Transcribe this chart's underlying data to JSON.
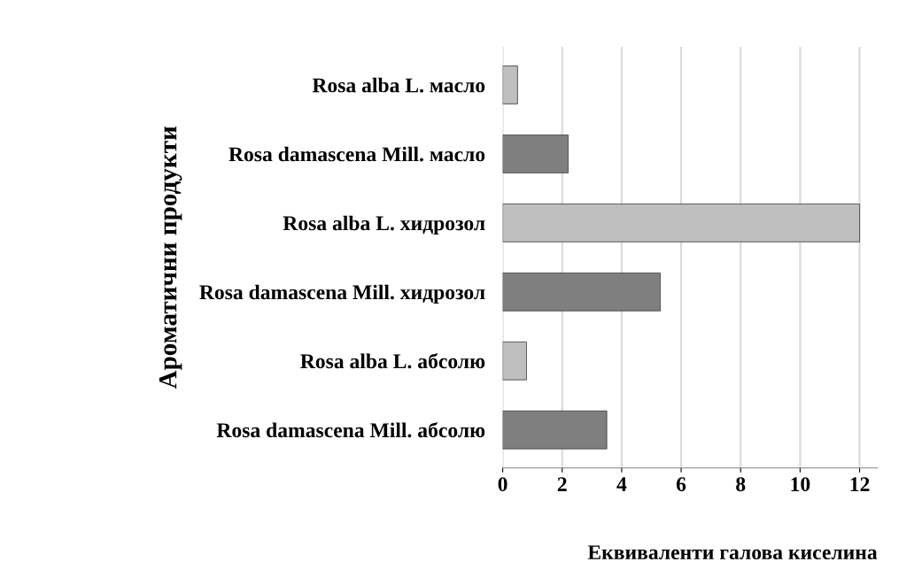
{
  "chart_data": {
    "type": "bar",
    "orientation": "horizontal",
    "categories": [
      "Rosa alba L. масло",
      "Rosa damascena Mill. масло",
      "Rosa alba L. хидрозол",
      "Rosa damascena Mill. хидрозол",
      "Rosa alba L. абсолю",
      "Rosa damascena Mill. абсолю"
    ],
    "values": [
      0.5,
      2.2,
      12.0,
      5.3,
      0.8,
      3.5
    ],
    "colors": [
      "#bfbfbf",
      "#7f7f7f",
      "#bfbfbf",
      "#7f7f7f",
      "#bfbfbf",
      "#7f7f7f"
    ],
    "xlim": [
      0,
      12.6
    ],
    "xticks": [
      0,
      2,
      4,
      6,
      8,
      10,
      12
    ],
    "grid": "x",
    "xlabel": "Еквиваленти галова киселина",
    "ylabel": "Ароматични продукти"
  }
}
